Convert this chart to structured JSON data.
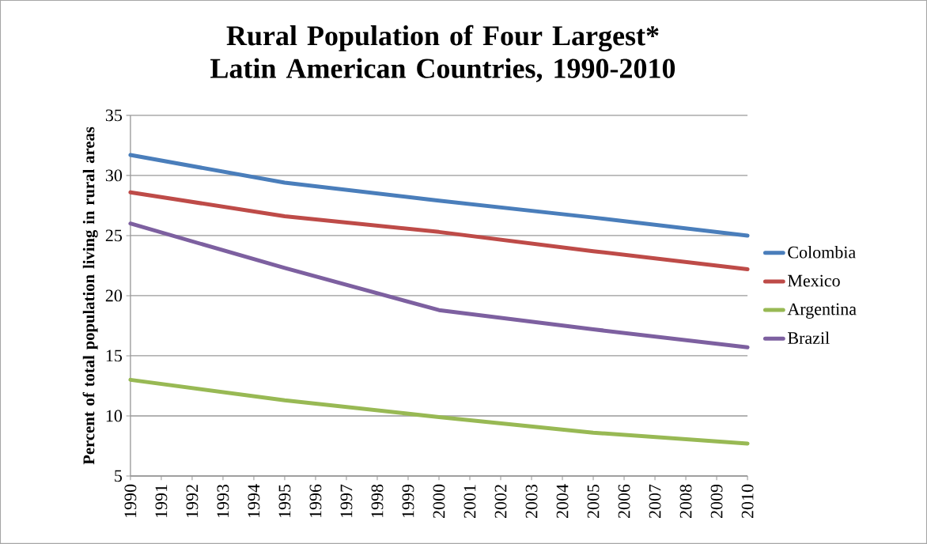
{
  "chart_data": {
    "type": "line",
    "title": "Rural Population of Four Largest* Latin American Countries, 1990-2010",
    "ylabel": "Percent of total population living in rural areas",
    "x": [
      1990,
      1995,
      2000,
      2005,
      2010
    ],
    "series": [
      {
        "name": "Colombia",
        "color": "#4a7ebb",
        "values": [
          31.7,
          29.4,
          27.9,
          26.5,
          25.0
        ]
      },
      {
        "name": "Mexico",
        "color": "#be4b48",
        "values": [
          28.6,
          26.6,
          25.3,
          23.7,
          22.2
        ]
      },
      {
        "name": "Argentina",
        "color": "#98b954",
        "values": [
          13.0,
          11.3,
          9.9,
          8.6,
          7.7
        ]
      },
      {
        "name": "Brazil",
        "color": "#7d60a0",
        "values": [
          26.0,
          22.3,
          18.8,
          17.2,
          15.7
        ]
      }
    ],
    "xlim": [
      1990,
      2010
    ],
    "xticks": [
      1990,
      1991,
      1992,
      1993,
      1994,
      1995,
      1996,
      1997,
      1998,
      1999,
      2000,
      2001,
      2002,
      2003,
      2004,
      2005,
      2006,
      2007,
      2008,
      2009,
      2010
    ],
    "ylim": [
      5,
      35
    ],
    "yticks": [
      5,
      10,
      15,
      20,
      25,
      30,
      35
    ],
    "grid": "y",
    "legend": "right"
  }
}
